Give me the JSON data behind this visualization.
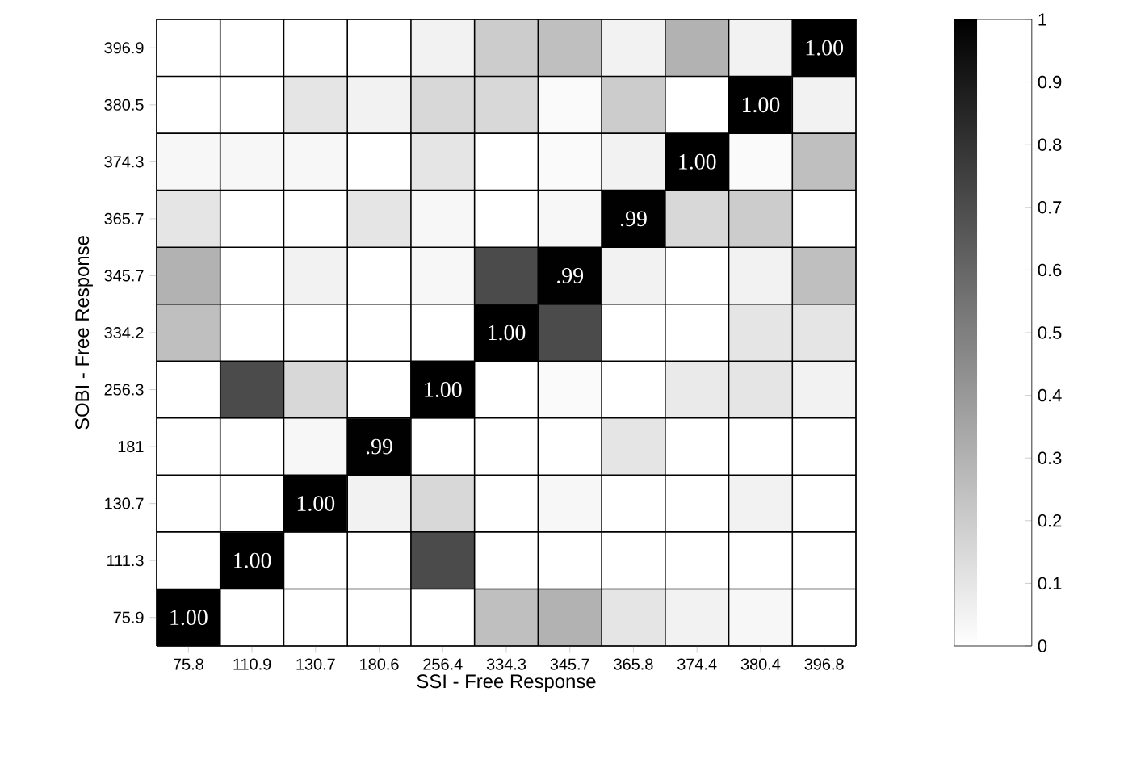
{
  "chart_data": {
    "type": "heatmap",
    "xlabel": "SSI - Free Response",
    "ylabel": "SOBI - Free Response",
    "categories": [
      "75.8",
      "110.9",
      "130.7",
      "180.6",
      "256.4",
      "334.3",
      "345.7",
      "365.8",
      "374.4",
      "380.4",
      "396.8"
    ],
    "y_categories": [
      "396.9",
      "380.5",
      "374.3",
      "365.7",
      "345.7",
      "334.2",
      "256.3",
      "181",
      "130.7",
      "111.3",
      "75.9"
    ],
    "cells": [
      [
        0,
        0,
        0,
        0,
        0.05,
        0.2,
        0.25,
        0.05,
        0.3,
        0.05,
        1.0
      ],
      [
        0,
        0,
        0.1,
        0.05,
        0.15,
        0.15,
        0.02,
        0.2,
        0,
        1.0,
        0.05
      ],
      [
        0.03,
        0.03,
        0.03,
        0,
        0.1,
        0,
        0.02,
        0.05,
        1.0,
        0.02,
        0.25
      ],
      [
        0.1,
        0,
        0,
        0.1,
        0.03,
        0,
        0.03,
        0.99,
        0.15,
        0.2,
        0
      ],
      [
        0.3,
        0,
        0.05,
        0,
        0.03,
        0.7,
        0.99,
        0.05,
        0,
        0.05,
        0.25
      ],
      [
        0.25,
        0,
        0,
        0,
        0,
        1.0,
        0.7,
        0,
        0,
        0.1,
        0.1
      ],
      [
        0,
        0.7,
        0.15,
        0,
        1.0,
        0,
        0.02,
        0,
        0.08,
        0.1,
        0.05
      ],
      [
        0,
        0,
        0.03,
        0.99,
        0,
        0,
        0,
        0.1,
        0,
        0,
        0
      ],
      [
        0,
        0,
        1.0,
        0.05,
        0.15,
        0,
        0.03,
        0,
        0,
        0.05,
        0
      ],
      [
        0,
        1.0,
        0,
        0,
        0.7,
        0,
        0,
        0,
        0,
        0,
        0
      ],
      [
        1.0,
        0,
        0,
        0,
        0,
        0.25,
        0.3,
        0.1,
        0.05,
        0.03,
        0
      ]
    ],
    "cell_labels": [
      [
        null,
        null,
        null,
        null,
        null,
        null,
        null,
        null,
        null,
        null,
        "1.00"
      ],
      [
        null,
        null,
        null,
        null,
        null,
        null,
        null,
        null,
        null,
        "1.00",
        null
      ],
      [
        null,
        null,
        null,
        null,
        null,
        null,
        null,
        null,
        "1.00",
        null,
        null
      ],
      [
        null,
        null,
        null,
        null,
        null,
        null,
        null,
        ".99",
        null,
        null,
        null
      ],
      [
        null,
        null,
        null,
        null,
        null,
        null,
        ".99",
        null,
        null,
        null,
        null
      ],
      [
        null,
        null,
        null,
        null,
        null,
        "1.00",
        null,
        null,
        null,
        null,
        null
      ],
      [
        null,
        null,
        null,
        null,
        "1.00",
        null,
        null,
        null,
        null,
        null,
        null
      ],
      [
        null,
        null,
        null,
        ".99",
        null,
        null,
        null,
        null,
        null,
        null,
        null
      ],
      [
        null,
        null,
        "1.00",
        null,
        null,
        null,
        null,
        null,
        null,
        null,
        null
      ],
      [
        null,
        "1.00",
        null,
        null,
        null,
        null,
        null,
        null,
        null,
        null,
        null
      ],
      [
        "1.00",
        null,
        null,
        null,
        null,
        null,
        null,
        null,
        null,
        null,
        null
      ]
    ],
    "clim": [
      0,
      1
    ],
    "cticks": [
      0,
      0.1,
      0.2,
      0.3,
      0.4,
      0.5,
      0.6,
      0.7,
      0.8,
      0.9,
      1
    ]
  }
}
